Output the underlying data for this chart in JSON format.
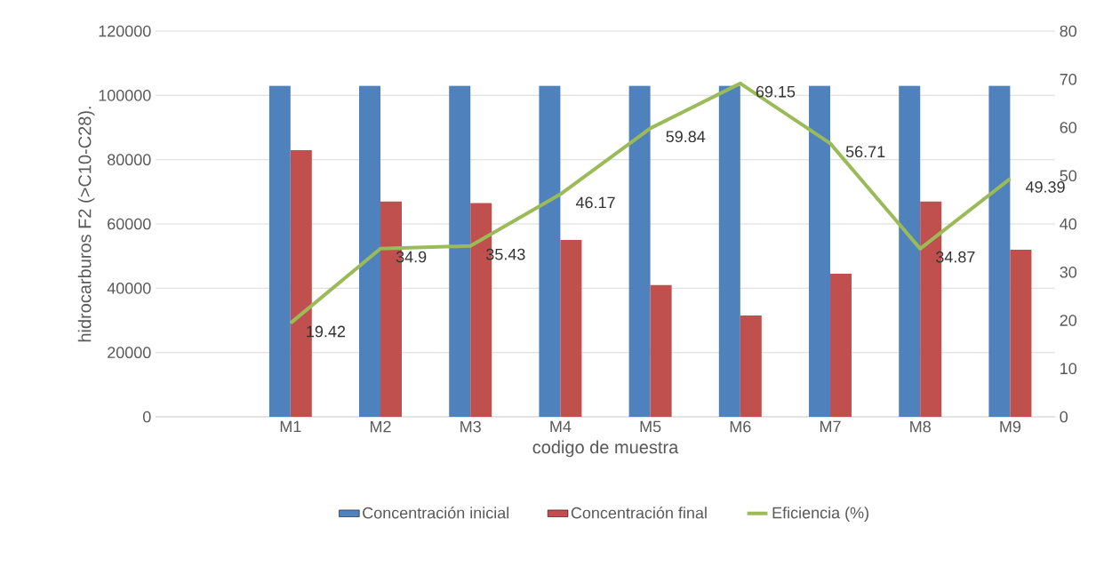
{
  "chart_data": {
    "type": "bar",
    "xlabel": "codigo de muestra",
    "ylabel": "hidrocarburos F2 (>C10-C28).",
    "categories": [
      null,
      "M1",
      "M2",
      "M3",
      "M4",
      "M5",
      "M6",
      "M7",
      "M8",
      "M9"
    ],
    "series": [
      {
        "name": "Concentración inicial",
        "color": "#4f81bd",
        "values": [
          null,
          103000,
          103000,
          103000,
          103000,
          103000,
          103000,
          103000,
          103000,
          103000
        ]
      },
      {
        "name": "Concentración final",
        "color": "#c0504d",
        "values": [
          null,
          83000,
          67000,
          66500,
          55000,
          41000,
          31500,
          44500,
          67000,
          52000
        ]
      },
      {
        "name": "Eficiencia (%)",
        "type": "line",
        "axis": "y2",
        "color": "#9bbb59",
        "marker": "none",
        "values": [
          null,
          19.42,
          34.9,
          35.43,
          46.17,
          59.84,
          69.15,
          56.71,
          34.87,
          49.39
        ],
        "value_labels": [
          null,
          "19.42",
          "34.9",
          "35.43",
          "46.17",
          "59.84",
          "69.15",
          "56.71",
          "34.87",
          "49.39"
        ]
      }
    ],
    "ylim": [
      0,
      120000
    ],
    "yticks": [
      0,
      20000,
      40000,
      60000,
      80000,
      100000,
      120000
    ],
    "y2lim": [
      0,
      80
    ],
    "y2ticks": [
      0,
      10,
      20,
      30,
      40,
      50,
      60,
      70,
      80
    ],
    "grid": "y",
    "legend": "bottom"
  }
}
